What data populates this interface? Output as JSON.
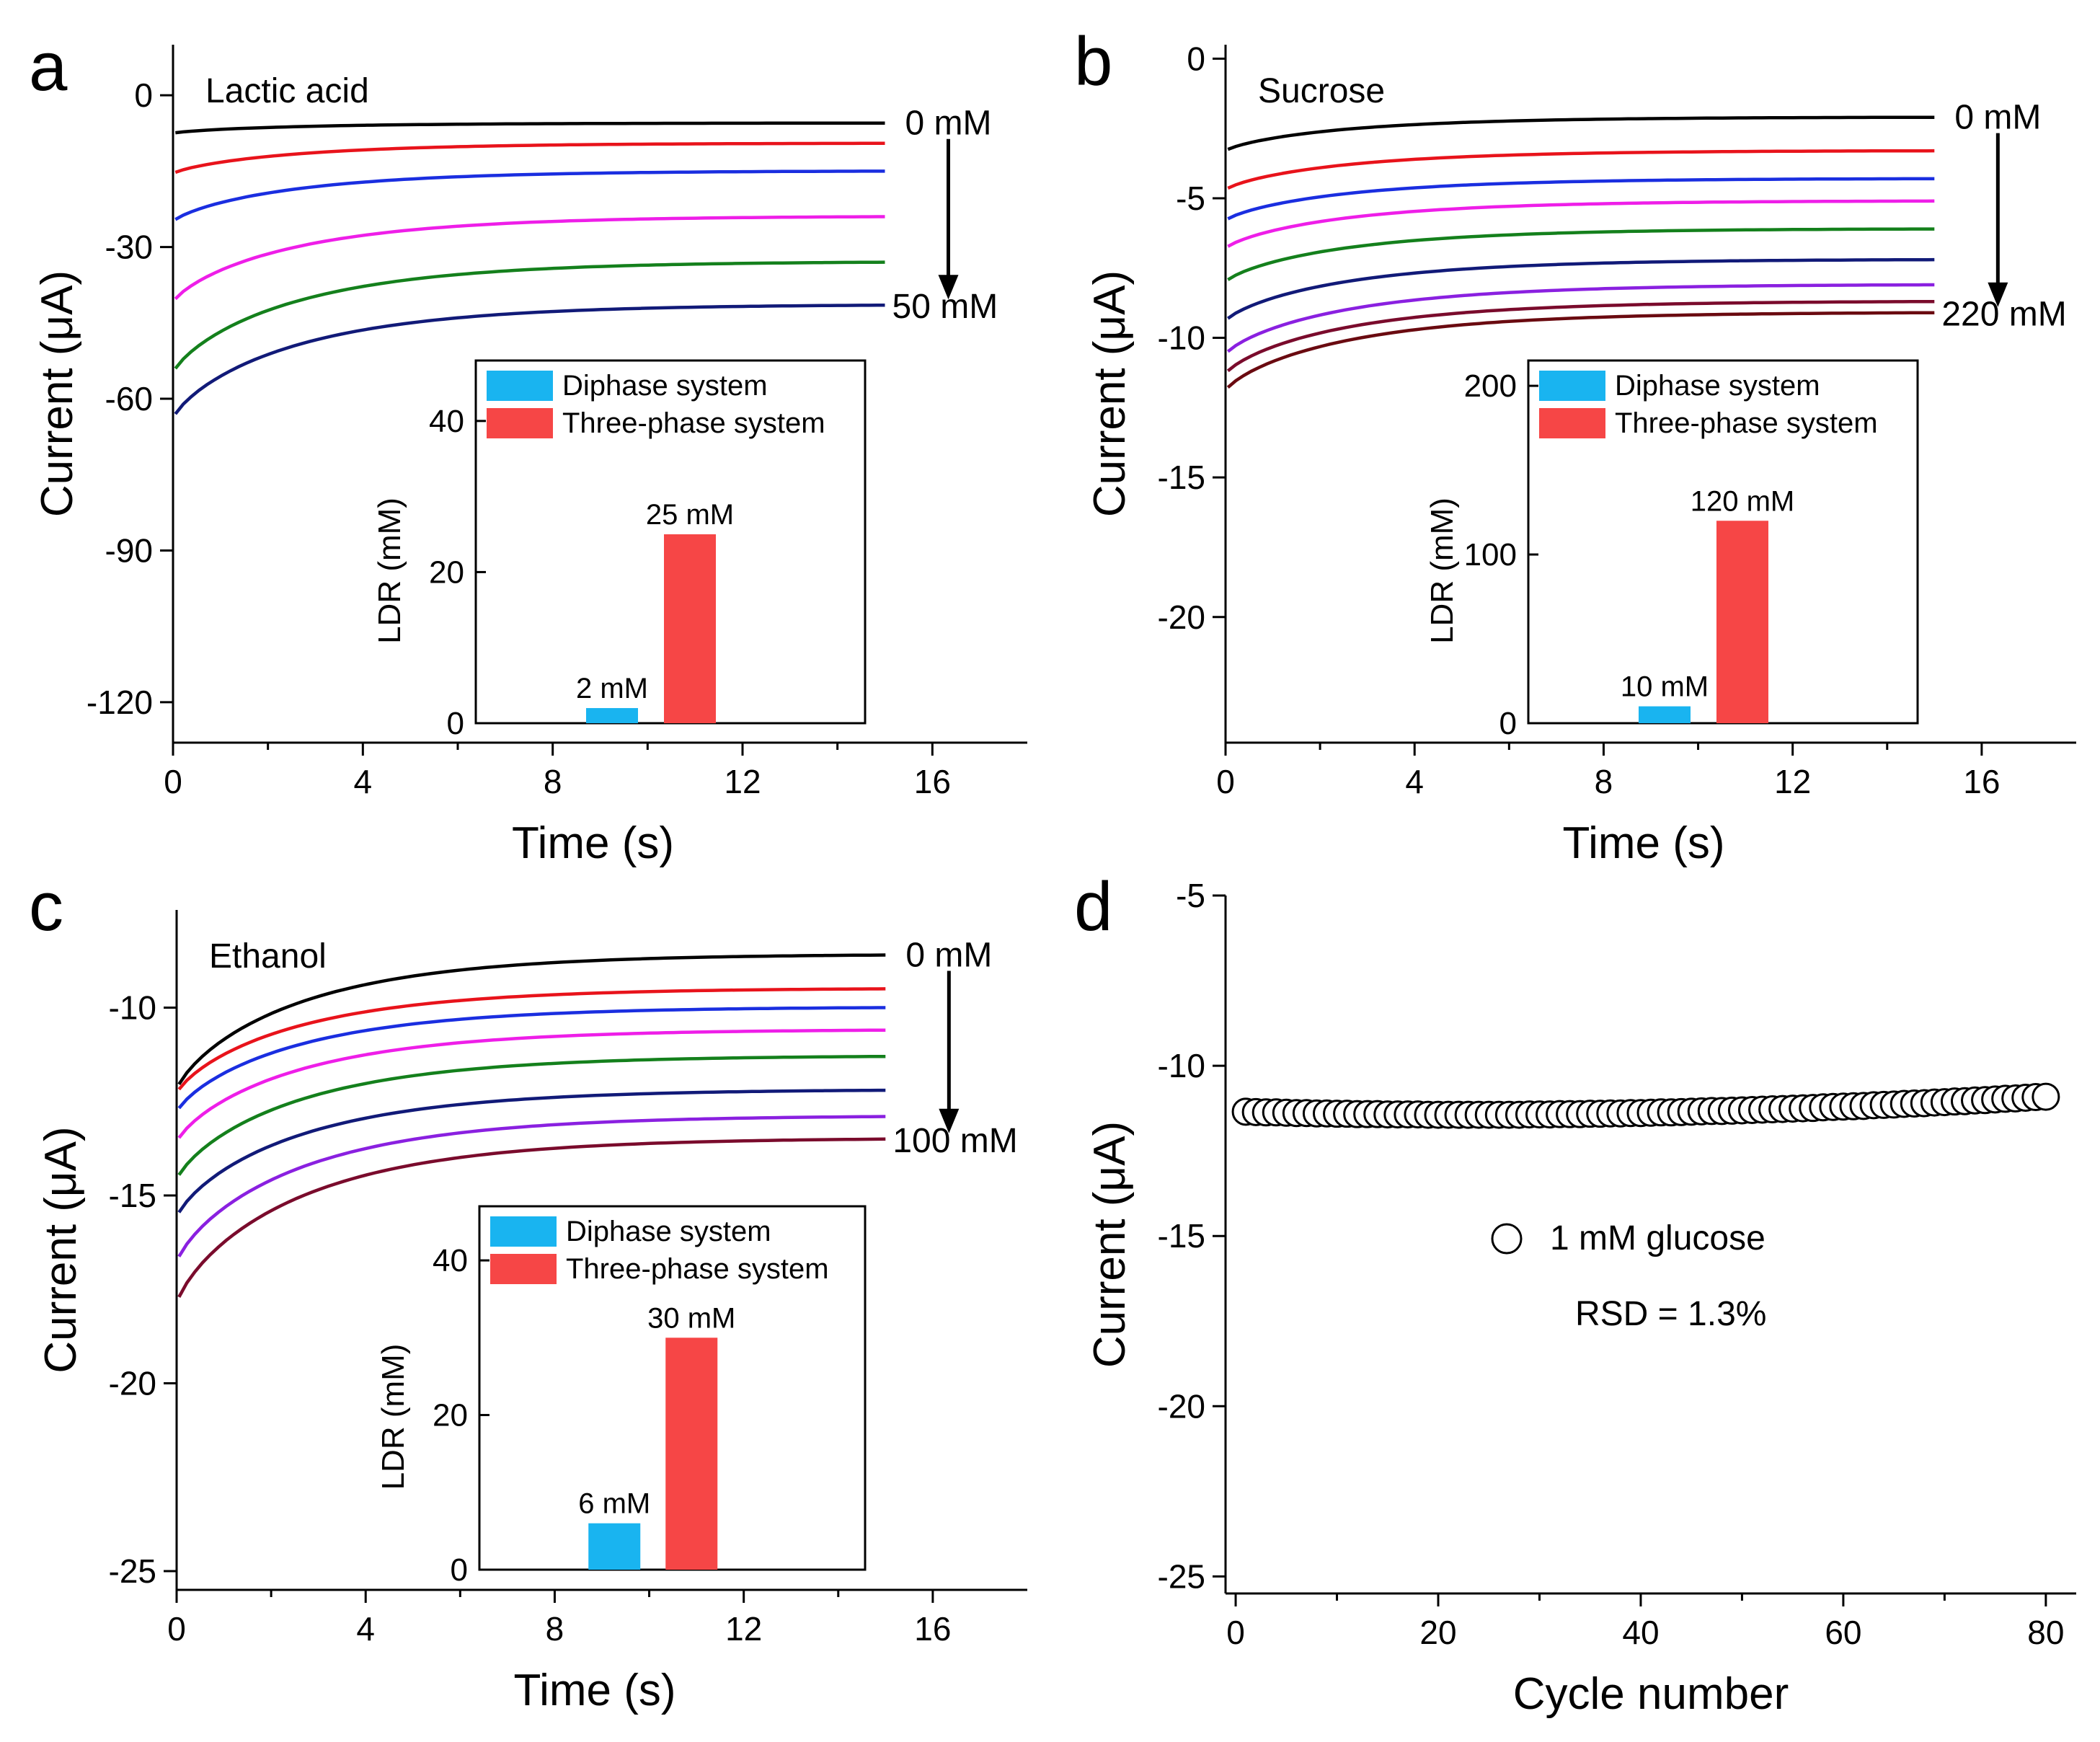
{
  "colors": {
    "curves": [
      "#000000",
      "#e8131b",
      "#1a2ee0",
      "#ee1ee8",
      "#14801c",
      "#111a78",
      "#8a20e0",
      "#7a0b2c",
      "#6a0a10"
    ],
    "diphase": "#19b4f0",
    "three_phase": "#f64646",
    "axis": "#000000"
  },
  "chart_data": [
    {
      "panel": "a",
      "type": "line",
      "annotation": "Lactic acid",
      "xlabel": "Time (s)",
      "ylabel": "Current (μA)",
      "xlim": [
        0,
        18
      ],
      "ylim": [
        -128,
        10
      ],
      "xticks": [
        0,
        4,
        8,
        12,
        16
      ],
      "yticks": [
        0,
        -30,
        -60,
        -90,
        -120
      ],
      "grid": false,
      "arrow_start_label": "0 mM",
      "arrow_end_label": "50 mM",
      "series": [
        {
          "start": -7.5,
          "end": -5.5
        },
        {
          "start": -15.5,
          "end": -9.5
        },
        {
          "start": -25,
          "end": -15
        },
        {
          "start": -41,
          "end": -24
        },
        {
          "start": -55,
          "end": -33
        },
        {
          "start": -64,
          "end": -41.5
        }
      ],
      "x_end": 15,
      "inset": {
        "type": "bar",
        "ylabel": "LDR (mM)",
        "ylim": [
          0,
          48
        ],
        "yticks": [
          0,
          20,
          40
        ],
        "legend": [
          "Diphase system",
          "Three-phase system"
        ],
        "categories": [
          "Diphase system",
          "Three-phase system"
        ],
        "values": [
          2,
          25
        ],
        "bar_labels": [
          "2 mM",
          "25 mM"
        ]
      }
    },
    {
      "panel": "b",
      "type": "line",
      "annotation": "Sucrose",
      "xlabel": "Time (s)",
      "ylabel": "Current (μA)",
      "xlim": [
        0,
        18
      ],
      "ylim": [
        -24.5,
        0.5
      ],
      "xticks": [
        0,
        4,
        8,
        12,
        16
      ],
      "yticks": [
        0,
        -5,
        -10,
        -15,
        -20
      ],
      "grid": false,
      "arrow_start_label": "0 mM",
      "arrow_end_label": "220 mM",
      "series": [
        {
          "start": -3.3,
          "end": -2.1
        },
        {
          "start": -4.7,
          "end": -3.3
        },
        {
          "start": -5.8,
          "end": -4.3
        },
        {
          "start": -6.8,
          "end": -5.1
        },
        {
          "start": -8.0,
          "end": -6.1
        },
        {
          "start": -9.4,
          "end": -7.2
        },
        {
          "start": -10.6,
          "end": -8.1
        },
        {
          "start": -11.3,
          "end": -8.7
        },
        {
          "start": -11.9,
          "end": -9.1
        }
      ],
      "x_end": 15,
      "inset": {
        "type": "bar",
        "ylabel": "LDR (mM)",
        "ylim": [
          0,
          215
        ],
        "yticks": [
          0,
          100,
          200
        ],
        "legend": [
          "Diphase system",
          "Three-phase system"
        ],
        "categories": [
          "Diphase system",
          "Three-phase system"
        ],
        "values": [
          10,
          120
        ],
        "bar_labels": [
          "10 mM",
          "120 mM"
        ]
      }
    },
    {
      "panel": "c",
      "type": "line",
      "annotation": "Ethanol",
      "xlabel": "Time (s)",
      "ylabel": "Current (μA)",
      "xlim": [
        0,
        18
      ],
      "ylim": [
        -25.5,
        -7.4
      ],
      "xticks": [
        0,
        4,
        8,
        12,
        16
      ],
      "yticks": [
        -10,
        -15,
        -20,
        -25
      ],
      "grid": false,
      "arrow_start_label": "0 mM",
      "arrow_end_label": "100 mM",
      "series": [
        {
          "start": -12.2,
          "end": -8.6
        },
        {
          "start": -12.3,
          "end": -9.5
        },
        {
          "start": -12.8,
          "end": -10.0
        },
        {
          "start": -13.6,
          "end": -10.6
        },
        {
          "start": -14.6,
          "end": -11.3
        },
        {
          "start": -15.6,
          "end": -12.2
        },
        {
          "start": -16.8,
          "end": -12.9
        },
        {
          "start": -17.9,
          "end": -13.5
        }
      ],
      "x_end": 15,
      "inset": {
        "type": "bar",
        "ylabel": "LDR (mM)",
        "ylim": [
          0,
          47
        ],
        "yticks": [
          0,
          20,
          40
        ],
        "legend": [
          "Diphase system",
          "Three-phase system"
        ],
        "categories": [
          "Diphase system",
          "Three-phase system"
        ],
        "values": [
          6,
          30
        ],
        "bar_labels": [
          "6 mM",
          "30 mM"
        ]
      }
    },
    {
      "panel": "d",
      "type": "scatter",
      "xlabel": "Cycle number",
      "ylabel": "Current (μA)",
      "xlim": [
        -1,
        83
      ],
      "ylim": [
        -25.5,
        -5
      ],
      "xticks": [
        0,
        20,
        40,
        60,
        80
      ],
      "yticks": [
        -5,
        -10,
        -15,
        -20,
        -25
      ],
      "grid": false,
      "legend": [
        "1 mM glucose"
      ],
      "annotation": "RSD = 1.3%",
      "series": [
        {
          "name": "1 mM glucose",
          "x": [
            1,
            2,
            3,
            4,
            5,
            6,
            7,
            8,
            9,
            10,
            11,
            12,
            13,
            14,
            15,
            16,
            17,
            18,
            19,
            20,
            21,
            22,
            23,
            24,
            25,
            26,
            27,
            28,
            29,
            30,
            31,
            32,
            33,
            34,
            35,
            36,
            37,
            38,
            39,
            40,
            41,
            42,
            43,
            44,
            45,
            46,
            47,
            48,
            49,
            50,
            51,
            52,
            53,
            54,
            55,
            56,
            57,
            58,
            59,
            60,
            61,
            62,
            63,
            64,
            65,
            66,
            67,
            68,
            69,
            70,
            71,
            72,
            73,
            74,
            75,
            76,
            77,
            78,
            79,
            80
          ],
          "y": [
            -11.35,
            -11.36,
            -11.37,
            -11.37,
            -11.38,
            -11.39,
            -11.39,
            -11.4,
            -11.4,
            -11.41,
            -11.41,
            -11.42,
            -11.42,
            -11.42,
            -11.43,
            -11.43,
            -11.43,
            -11.43,
            -11.44,
            -11.44,
            -11.44,
            -11.44,
            -11.44,
            -11.44,
            -11.44,
            -11.44,
            -11.44,
            -11.44,
            -11.43,
            -11.43,
            -11.43,
            -11.42,
            -11.42,
            -11.42,
            -11.41,
            -11.41,
            -11.4,
            -11.4,
            -11.39,
            -11.39,
            -11.38,
            -11.37,
            -11.37,
            -11.36,
            -11.35,
            -11.34,
            -11.33,
            -11.33,
            -11.32,
            -11.31,
            -11.3,
            -11.29,
            -11.28,
            -11.27,
            -11.26,
            -11.25,
            -11.24,
            -11.22,
            -11.21,
            -11.2,
            -11.19,
            -11.18,
            -11.16,
            -11.15,
            -11.14,
            -11.12,
            -11.11,
            -11.1,
            -11.08,
            -11.07,
            -11.05,
            -11.04,
            -11.02,
            -11.01,
            -10.99,
            -10.97,
            -10.96,
            -10.94,
            -10.92,
            -10.91
          ]
        }
      ]
    }
  ]
}
